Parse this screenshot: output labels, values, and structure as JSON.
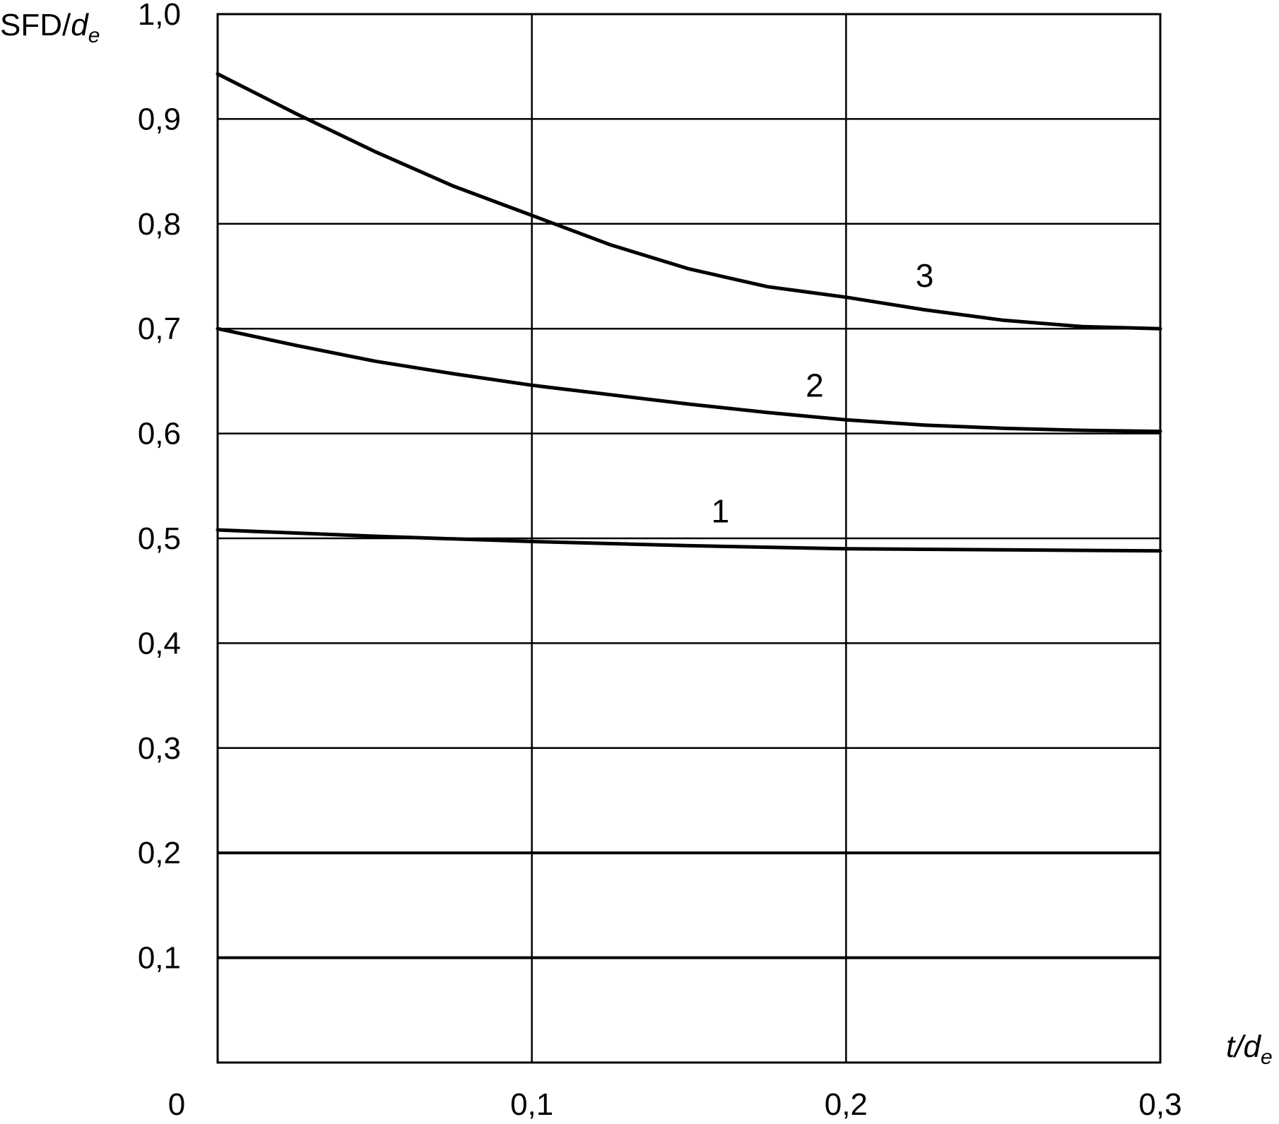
{
  "chart_data": {
    "type": "line",
    "ylabel_main": "SFD/",
    "ylabel_var": "d",
    "ylabel_sub": "e",
    "xlabel_main": "t/",
    "xlabel_var": "d",
    "xlabel_sub": "e",
    "xlim": [
      0,
      0.3
    ],
    "ylim": [
      0,
      1.0
    ],
    "x_ticks": [
      {
        "value": 0,
        "label": "0"
      },
      {
        "value": 0.1,
        "label": "0,1"
      },
      {
        "value": 0.2,
        "label": "0,2"
      },
      {
        "value": 0.3,
        "label": "0,3"
      }
    ],
    "y_ticks": [
      {
        "value": 0.1,
        "label": "0,1"
      },
      {
        "value": 0.2,
        "label": "0,2"
      },
      {
        "value": 0.3,
        "label": "0,3"
      },
      {
        "value": 0.4,
        "label": "0,4"
      },
      {
        "value": 0.5,
        "label": "0,5"
      },
      {
        "value": 0.6,
        "label": "0,6"
      },
      {
        "value": 0.7,
        "label": "0,7"
      },
      {
        "value": 0.8,
        "label": "0,8"
      },
      {
        "value": 0.9,
        "label": "0,9"
      },
      {
        "value": 1.0,
        "label": "1,0"
      }
    ],
    "grid": true,
    "series": [
      {
        "label": "1",
        "label_at": [
          0.16,
          0.515
        ],
        "x": [
          0,
          0.05,
          0.1,
          0.15,
          0.2,
          0.25,
          0.3
        ],
        "y": [
          0.508,
          0.502,
          0.497,
          0.493,
          0.49,
          0.489,
          0.488
        ]
      },
      {
        "label": "2",
        "label_at": [
          0.19,
          0.635
        ],
        "x": [
          0,
          0.025,
          0.05,
          0.075,
          0.1,
          0.125,
          0.15,
          0.175,
          0.2,
          0.225,
          0.25,
          0.275,
          0.3
        ],
        "y": [
          0.7,
          0.684,
          0.669,
          0.657,
          0.646,
          0.637,
          0.628,
          0.62,
          0.613,
          0.608,
          0.605,
          0.603,
          0.602
        ]
      },
      {
        "label": "3",
        "label_at": [
          0.225,
          0.74
        ],
        "x": [
          0,
          0.025,
          0.05,
          0.075,
          0.1,
          0.125,
          0.15,
          0.175,
          0.2,
          0.225,
          0.25,
          0.275,
          0.3
        ],
        "y": [
          0.943,
          0.905,
          0.869,
          0.836,
          0.808,
          0.78,
          0.757,
          0.74,
          0.73,
          0.718,
          0.708,
          0.702,
          0.7
        ]
      }
    ]
  }
}
